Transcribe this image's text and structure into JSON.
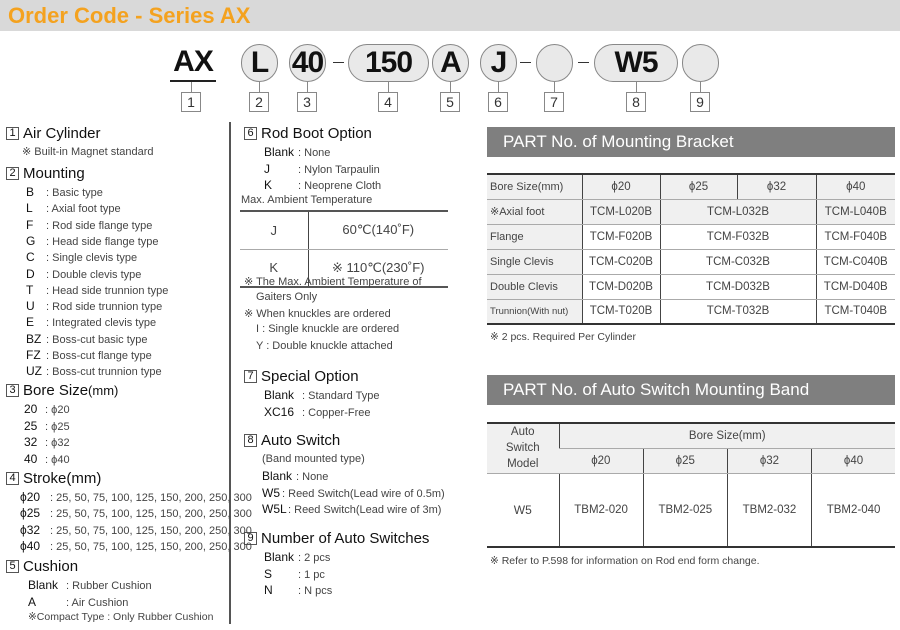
{
  "header": {
    "title": "Order Code - Series AX"
  },
  "code": {
    "parts": [
      "AX",
      "L",
      "40",
      "150",
      "A",
      "J",
      "",
      "W5",
      ""
    ],
    "numbers": [
      "1",
      "2",
      "3",
      "4",
      "5",
      "6",
      "7",
      "8",
      "9"
    ]
  },
  "left": {
    "s1": {
      "num": "1",
      "title": "Air Cylinder",
      "note": "※ Built-in Magnet standard"
    },
    "s2": {
      "num": "2",
      "title": "Mounting",
      "items": [
        [
          "B",
          "Basic type"
        ],
        [
          "L",
          "Axial foot type"
        ],
        [
          "F",
          "Rod side flange type"
        ],
        [
          "G",
          "Head side flange type"
        ],
        [
          "C",
          "Single clevis type"
        ],
        [
          "D",
          "Double clevis type"
        ],
        [
          "T",
          "Head side trunnion type"
        ],
        [
          "U",
          "Rod side trunnion type"
        ],
        [
          "E",
          "Integrated clevis type"
        ],
        [
          "BZ",
          "Boss-cut basic type"
        ],
        [
          "FZ",
          "Boss-cut flange type"
        ],
        [
          "UZ",
          "Boss-cut trunnion type"
        ]
      ]
    },
    "s3": {
      "num": "3",
      "title": "Bore Size",
      "unit": "(mm)",
      "items": [
        [
          "20",
          "ϕ20"
        ],
        [
          "25",
          "ϕ25"
        ],
        [
          "32",
          "ϕ32"
        ],
        [
          "40",
          "ϕ40"
        ]
      ]
    },
    "s4": {
      "num": "4",
      "title": "Stroke(mm)",
      "items": [
        [
          "ϕ20",
          "25, 50, 75, 100, 125, 150, 200, 250, 300"
        ],
        [
          "ϕ25",
          "25, 50, 75, 100, 125, 150, 200, 250, 300"
        ],
        [
          "ϕ32",
          "25, 50, 75, 100, 125, 150, 200, 250, 300"
        ],
        [
          "ϕ40",
          "25, 50, 75, 100, 125, 150, 200, 250, 300"
        ]
      ]
    },
    "s5": {
      "num": "5",
      "title": "Cushion",
      "items": [
        [
          "Blank",
          "Rubber Cushion"
        ],
        [
          "A",
          "Air Cushion"
        ]
      ],
      "note": "※Compact Type : Only Rubber Cushion"
    }
  },
  "middle": {
    "s6": {
      "num": "6",
      "title": "Rod Boot Option",
      "items": [
        [
          "Blank",
          "None"
        ],
        [
          "J",
          "Nylon Tarpaulin"
        ],
        [
          "K",
          "Neoprene Cloth"
        ]
      ],
      "temp_label": "Max. Ambient Temperature",
      "temp_rows": [
        [
          "J",
          "60℃(140˚F)"
        ],
        [
          "K",
          "※ 110℃(230˚F)"
        ]
      ],
      "notes": [
        "※ The Max. Ambient Temperature of",
        "Gaiters Only",
        "※ When knuckles are ordered",
        "I : Single knuckle are ordered",
        "Y : Double knuckle attached"
      ]
    },
    "s7": {
      "num": "7",
      "title": "Special Option",
      "items": [
        [
          "Blank",
          "Standard Type"
        ],
        [
          "XC16",
          "Copper-Free"
        ]
      ]
    },
    "s8": {
      "num": "8",
      "title": "Auto Switch",
      "sub": "(Band mounted type)",
      "items": [
        [
          "Blank",
          "None"
        ],
        [
          "W5",
          "Reed Switch(Lead wire of 0.5m)"
        ],
        [
          "W5L",
          "Reed Switch(Lead wire of 3m)"
        ]
      ]
    },
    "s9": {
      "num": "9",
      "title": "Number of Auto Switches",
      "items": [
        [
          "Blank",
          "2 pcs"
        ],
        [
          "S",
          "1 pc"
        ],
        [
          "N",
          "N pcs"
        ]
      ]
    }
  },
  "bracket": {
    "title": "PART No. of Mounting Bracket",
    "header": [
      "Bore Size(mm)",
      "ϕ20",
      "ϕ25",
      "ϕ32",
      "ϕ40"
    ],
    "rows": [
      [
        "※Axial foot",
        "TCM-L020B",
        "TCM-L032B",
        "TCM-L040B"
      ],
      [
        "Flange",
        "TCM-F020B",
        "TCM-F032B",
        "TCM-F040B"
      ],
      [
        "Single Clevis",
        "TCM-C020B",
        "TCM-C032B",
        "TCM-C040B"
      ],
      [
        "Double Clevis",
        "TCM-D020B",
        "TCM-D032B",
        "TCM-D040B"
      ],
      [
        "Trunnion(With nut)",
        "TCM-T020B",
        "TCM-T032B",
        "TCM-T040B"
      ]
    ],
    "note": "※ 2 pcs. Required Per Cylinder"
  },
  "band": {
    "title": "PART No. of Auto Switch Mounting Band",
    "model_label": "Auto Switch Model",
    "bore_label": "Bore Size(mm)",
    "sizes": [
      "ϕ20",
      "ϕ25",
      "ϕ32",
      "ϕ40"
    ],
    "row": [
      "W5",
      "TBM2-020",
      "TBM2-025",
      "TBM2-032",
      "TBM2-040"
    ],
    "note": "※ Refer to P.598 for information on Rod end form change."
  }
}
